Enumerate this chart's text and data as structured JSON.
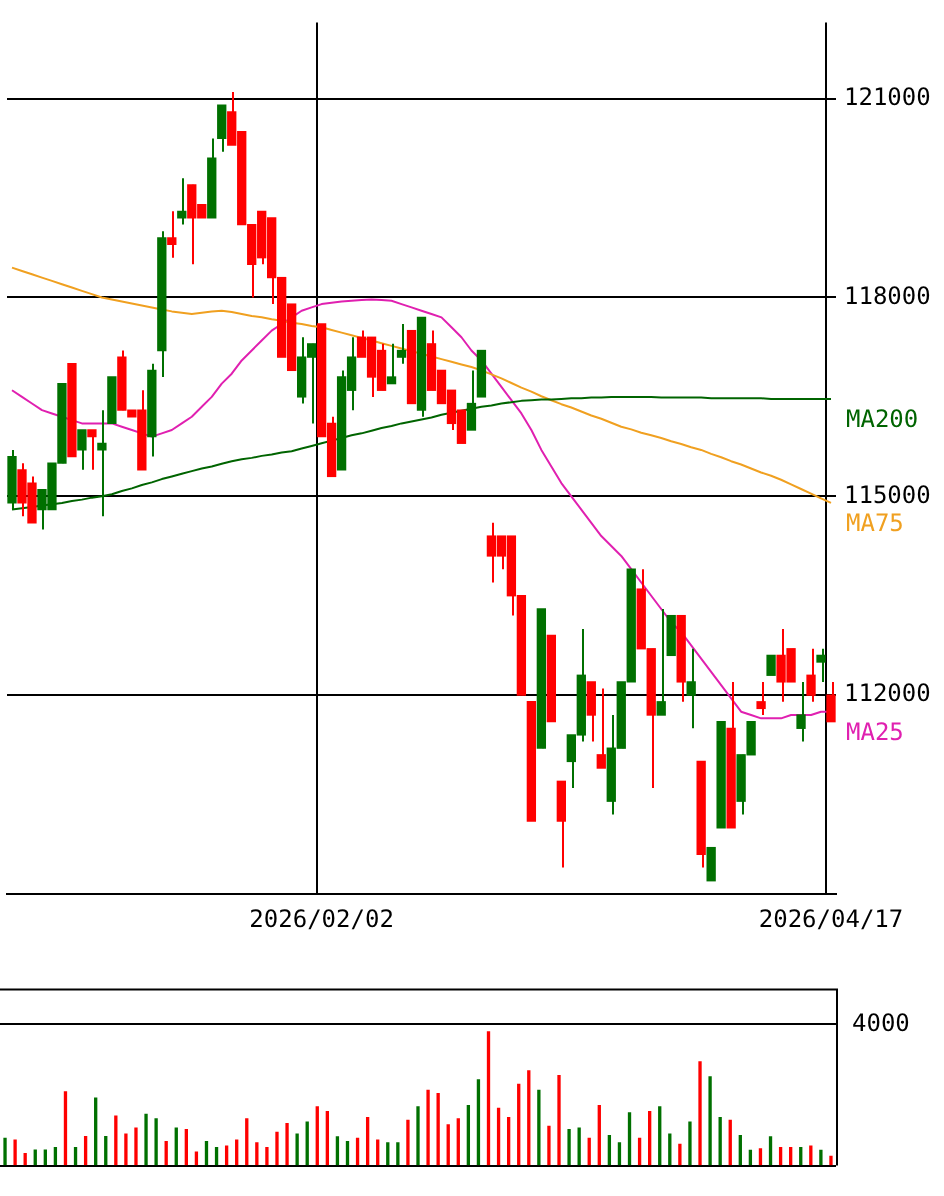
{
  "chart_data": [
    {
      "type": "candlestick",
      "categories": [
        null,
        null,
        null,
        null,
        null,
        null,
        null,
        null,
        null,
        null,
        null,
        null,
        null,
        null,
        null,
        null,
        null,
        null,
        null,
        null,
        null,
        null,
        null,
        null,
        null,
        null,
        null,
        null,
        null,
        null,
        null,
        "2026/02/02",
        null,
        null,
        null,
        null,
        null,
        null,
        null,
        null,
        null,
        null,
        null,
        null,
        null,
        null,
        null,
        null,
        null,
        null,
        null,
        null,
        null,
        null,
        null,
        null,
        null,
        null,
        null,
        null,
        null,
        null,
        null,
        null,
        null,
        null,
        null,
        null,
        null,
        null,
        null,
        null,
        null,
        null,
        null,
        null,
        null,
        null,
        null,
        null,
        null,
        null,
        "2026/04/17"
      ],
      "ohlc": [
        [
          114900,
          115700,
          114800,
          115600
        ],
        [
          115400,
          115500,
          114700,
          114900
        ],
        [
          115200,
          115300,
          114600,
          114600
        ],
        [
          114800,
          115100,
          114500,
          115100
        ],
        [
          114800,
          115500,
          114800,
          115500
        ],
        [
          115500,
          116700,
          115500,
          116700
        ],
        [
          117000,
          117000,
          115600,
          115600
        ],
        [
          115700,
          116000,
          115400,
          116000
        ],
        [
          116000,
          116000,
          115400,
          115900
        ],
        [
          115700,
          116300,
          114700,
          115800
        ],
        [
          116100,
          116800,
          116100,
          116800
        ],
        [
          117100,
          117200,
          116300,
          116300
        ],
        [
          116300,
          116300,
          116200,
          116200
        ],
        [
          116300,
          116600,
          115400,
          115400
        ],
        [
          115900,
          117000,
          115600,
          116900
        ],
        [
          117200,
          119000,
          116800,
          118900
        ],
        [
          118900,
          119300,
          118600,
          118800
        ],
        [
          119200,
          119800,
          119100,
          119300
        ],
        [
          119700,
          119700,
          118500,
          119200
        ],
        [
          119400,
          119400,
          119200,
          119200
        ],
        [
          119200,
          120400,
          119200,
          120100
        ],
        [
          120400,
          120900,
          120200,
          120900
        ],
        [
          120800,
          121100,
          120300,
          120300
        ],
        [
          120500,
          120500,
          119100,
          119100
        ],
        [
          119100,
          119100,
          118000,
          118500
        ],
        [
          119300,
          119300,
          118500,
          118600
        ],
        [
          119200,
          119200,
          117900,
          118300
        ],
        [
          118300,
          118300,
          117100,
          117100
        ],
        [
          117900,
          117900,
          116900,
          116900
        ],
        [
          116500,
          117400,
          116400,
          117100
        ],
        [
          117100,
          117300,
          116100,
          117300
        ],
        [
          117600,
          117600,
          115900,
          115900
        ],
        [
          116100,
          116200,
          115300,
          115300
        ],
        [
          115400,
          116900,
          115400,
          116800
        ],
        [
          116600,
          117400,
          116300,
          117100
        ],
        [
          117400,
          117500,
          117100,
          117100
        ],
        [
          117400,
          117400,
          116500,
          116800
        ],
        [
          117200,
          117300,
          116600,
          116600
        ],
        [
          116700,
          117300,
          116700,
          116800
        ],
        [
          117100,
          117600,
          117000,
          117200
        ],
        [
          117500,
          117500,
          116400,
          116400
        ],
        [
          116300,
          117700,
          116200,
          117700
        ],
        [
          117300,
          117500,
          116600,
          116600
        ],
        [
          116900,
          116900,
          116400,
          116400
        ],
        [
          116600,
          116600,
          116000,
          116100
        ],
        [
          116300,
          116300,
          115800,
          115800
        ],
        [
          116000,
          116900,
          116000,
          116400
        ],
        [
          116500,
          117200,
          116500,
          117200
        ],
        [
          114400,
          114600,
          113700,
          114100
        ],
        [
          114400,
          114400,
          113900,
          114100
        ],
        [
          114400,
          114400,
          113200,
          113500
        ],
        [
          113500,
          113500,
          112000,
          112000
        ],
        [
          111900,
          111900,
          110100,
          110100
        ],
        [
          111200,
          113300,
          111200,
          113300
        ],
        [
          112900,
          112900,
          111600,
          111600
        ],
        [
          110700,
          110700,
          109400,
          110100
        ],
        [
          111000,
          111400,
          110600,
          111400
        ],
        [
          111400,
          113000,
          111300,
          112300
        ],
        [
          112200,
          112200,
          111300,
          111700
        ],
        [
          111100,
          112100,
          110900,
          110900
        ],
        [
          110400,
          111700,
          110200,
          111200
        ],
        [
          111200,
          112200,
          111200,
          112200
        ],
        [
          112200,
          113900,
          112200,
          113900
        ],
        [
          113600,
          113900,
          112700,
          112700
        ],
        [
          112700,
          112700,
          110600,
          111700
        ],
        [
          111700,
          113300,
          111700,
          111900
        ],
        [
          112600,
          113200,
          112600,
          113200
        ],
        [
          113200,
          113200,
          111900,
          112200
        ],
        [
          112000,
          112700,
          111500,
          112200
        ],
        [
          111000,
          111000,
          109400,
          109600
        ],
        [
          109200,
          109700,
          109200,
          109700
        ],
        [
          110000,
          111600,
          110000,
          111600
        ],
        [
          111500,
          112200,
          110000,
          110000
        ],
        [
          110400,
          111100,
          110200,
          111100
        ],
        [
          111100,
          111600,
          111100,
          111600
        ],
        [
          111900,
          112200,
          111700,
          111800
        ],
        [
          112300,
          112600,
          112300,
          112600
        ],
        [
          112600,
          113000,
          111900,
          112200
        ],
        [
          112700,
          112700,
          112200,
          112200
        ],
        [
          111500,
          112200,
          111300,
          111700
        ],
        [
          112300,
          112700,
          111900,
          112000
        ],
        [
          112500,
          112700,
          112200,
          112600
        ],
        [
          112000,
          112200,
          111600,
          111600
        ]
      ],
      "colors": [
        "#007000",
        "#ff0000",
        "#ff0000",
        "#007000",
        "#007000",
        "#007000",
        "#ff0000",
        "#007000",
        "#ff0000",
        "#007000",
        "#007000",
        "#ff0000",
        "#ff0000",
        "#ff0000",
        "#007000",
        "#007000",
        "#ff0000",
        "#007000",
        "#ff0000",
        "#ff0000",
        "#007000",
        "#007000",
        "#ff0000",
        "#ff0000",
        "#ff0000",
        "#ff0000",
        "#ff0000",
        "#ff0000",
        "#ff0000",
        "#007000",
        "#007000",
        "#ff0000",
        "#ff0000",
        "#007000",
        "#007000",
        "#ff0000",
        "#ff0000",
        "#ff0000",
        "#007000",
        "#007000",
        "#ff0000",
        "#007000",
        "#ff0000",
        "#ff0000",
        "#ff0000",
        "#ff0000",
        "#007000",
        "#007000",
        "#ff0000",
        "#ff0000",
        "#ff0000",
        "#ff0000",
        "#ff0000",
        "#007000",
        "#ff0000",
        "#ff0000",
        "#007000",
        "#007000",
        "#ff0000",
        "#ff0000",
        "#007000",
        "#007000",
        "#007000",
        "#ff0000",
        "#ff0000",
        "#007000",
        "#007000",
        "#ff0000",
        "#007000",
        "#ff0000",
        "#007000",
        "#007000",
        "#ff0000",
        "#007000",
        "#007000",
        "#ff0000",
        "#007000",
        "#ff0000",
        "#ff0000",
        "#007000",
        "#ff0000",
        "#007000",
        "#ff0000"
      ],
      "series": [
        {
          "name": "MA200",
          "type": "line",
          "color": "#006400",
          "values": [
            114800,
            114820,
            114840,
            114860,
            114880,
            114900,
            114930,
            114950,
            114980,
            115000,
            115030,
            115080,
            115120,
            115170,
            115210,
            115260,
            115300,
            115340,
            115380,
            115420,
            115450,
            115490,
            115530,
            115560,
            115580,
            115610,
            115630,
            115660,
            115680,
            115720,
            115760,
            115800,
            115840,
            115880,
            115920,
            115950,
            115990,
            116030,
            116060,
            116100,
            116130,
            116160,
            116190,
            116230,
            116260,
            116290,
            116320,
            116350,
            116370,
            116400,
            116420,
            116440,
            116450,
            116460,
            116460,
            116470,
            116480,
            116480,
            116490,
            116490,
            116500,
            116500,
            116500,
            116500,
            116500,
            116490,
            116490,
            116490,
            116490,
            116490,
            116480,
            116480,
            116480,
            116480,
            116480,
            116480,
            116470,
            116470,
            116470,
            116470,
            116470,
            116470,
            116470
          ]
        },
        {
          "name": "MA75",
          "type": "line",
          "color": "#f0a020",
          "values": [
            118450,
            118400,
            118350,
            118300,
            118250,
            118200,
            118150,
            118100,
            118050,
            118000,
            117970,
            117940,
            117910,
            117880,
            117850,
            117820,
            117790,
            117770,
            117750,
            117770,
            117790,
            117800,
            117780,
            117750,
            117720,
            117700,
            117670,
            117650,
            117620,
            117600,
            117570,
            117550,
            117510,
            117470,
            117430,
            117390,
            117350,
            117310,
            117270,
            117230,
            117190,
            117150,
            117110,
            117070,
            117030,
            116990,
            116950,
            116900,
            116840,
            116780,
            116710,
            116640,
            116580,
            116510,
            116450,
            116390,
            116340,
            116280,
            116220,
            116170,
            116110,
            116050,
            116010,
            115960,
            115920,
            115880,
            115830,
            115790,
            115740,
            115700,
            115640,
            115590,
            115530,
            115480,
            115420,
            115360,
            115310,
            115250,
            115180,
            115110,
            115040,
            114970,
            114900
          ]
        },
        {
          "name": "MA25",
          "type": "line",
          "color": "#e020b0",
          "values": [
            116600,
            116500,
            116400,
            116300,
            116250,
            116200,
            116150,
            116100,
            116100,
            116100,
            116100,
            116050,
            116000,
            115950,
            115900,
            115950,
            116000,
            116100,
            116200,
            116350,
            116500,
            116700,
            116850,
            117050,
            117200,
            117350,
            117500,
            117600,
            117700,
            117800,
            117850,
            117900,
            117920,
            117940,
            117950,
            117960,
            117970,
            117960,
            117950,
            117900,
            117850,
            117800,
            117750,
            117700,
            117550,
            117400,
            117200,
            117050,
            116850,
            116650,
            116450,
            116250,
            116000,
            115700,
            115450,
            115200,
            115000,
            114800,
            114600,
            114400,
            114250,
            114100,
            113900,
            113700,
            113500,
            113300,
            113100,
            112950,
            112750,
            112550,
            112350,
            112150,
            111950,
            111750,
            111700,
            111650,
            111650,
            111650,
            111700,
            111700,
            111700,
            111750,
            111750
          ]
        }
      ],
      "ylim": [
        109000,
        122150
      ],
      "yticks": [
        112000,
        115000,
        118000,
        121000
      ],
      "grid": true
    },
    {
      "type": "bar",
      "tick_labels": "y",
      "grid": "y",
      "ylim": [
        0,
        5020
      ],
      "yticks": [
        {
          "value": 0,
          "label": null
        },
        4000
      ],
      "categories": [
        null,
        null,
        null,
        null,
        null,
        null,
        null,
        null,
        null,
        null,
        null,
        null,
        null,
        null,
        null,
        null,
        null,
        null,
        null,
        null,
        null,
        null,
        null,
        null,
        null,
        null,
        null,
        null,
        null,
        null,
        null,
        "2026/02/02",
        null,
        null,
        null,
        null,
        null,
        null,
        null,
        null,
        null,
        null,
        null,
        null,
        null,
        null,
        null,
        null,
        null,
        null,
        null,
        null,
        null,
        null,
        null,
        null,
        null,
        null,
        null,
        null,
        null,
        null,
        null,
        null,
        null,
        null,
        null,
        null,
        null,
        null,
        null,
        null,
        null,
        null,
        null,
        null,
        null,
        null,
        null,
        null,
        null,
        null,
        "2026/04/17"
      ],
      "values": [
        770,
        720,
        340,
        440,
        440,
        510,
        2090,
        510,
        820,
        1910,
        820,
        1400,
        890,
        1060,
        1450,
        1320,
        680,
        1060,
        1020,
        380,
        680,
        510,
        550,
        720,
        1320,
        640,
        510,
        940,
        1190,
        890,
        1230,
        1660,
        1530,
        810,
        680,
        770,
        1360,
        720,
        640,
        640,
        1280,
        1660,
        2130,
        2040,
        1150,
        1320,
        1700,
        2430,
        3790,
        1620,
        1360,
        2300,
        2680,
        2130,
        1110,
        2550,
        1020,
        1060,
        770,
        1700,
        850,
        640,
        1490,
        770,
        1530,
        1660,
        890,
        600,
        1230,
        2940,
        2510,
        1360,
        1280,
        850,
        430,
        470,
        810,
        510,
        510,
        510,
        550,
        430,
        260
      ],
      "colors": [
        "#007000",
        "#ff0000",
        "#ff0000",
        "#007000",
        "#007000",
        "#007000",
        "#ff0000",
        "#007000",
        "#ff0000",
        "#007000",
        "#007000",
        "#ff0000",
        "#ff0000",
        "#ff0000",
        "#007000",
        "#007000",
        "#ff0000",
        "#007000",
        "#ff0000",
        "#ff0000",
        "#007000",
        "#007000",
        "#ff0000",
        "#ff0000",
        "#ff0000",
        "#ff0000",
        "#ff0000",
        "#ff0000",
        "#ff0000",
        "#007000",
        "#007000",
        "#ff0000",
        "#ff0000",
        "#007000",
        "#007000",
        "#ff0000",
        "#ff0000",
        "#ff0000",
        "#007000",
        "#007000",
        "#ff0000",
        "#007000",
        "#ff0000",
        "#ff0000",
        "#ff0000",
        "#ff0000",
        "#007000",
        "#007000",
        "#ff0000",
        "#ff0000",
        "#ff0000",
        "#ff0000",
        "#ff0000",
        "#007000",
        "#ff0000",
        "#ff0000",
        "#007000",
        "#007000",
        "#ff0000",
        "#ff0000",
        "#007000",
        "#007000",
        "#007000",
        "#ff0000",
        "#ff0000",
        "#007000",
        "#007000",
        "#ff0000",
        "#007000",
        "#ff0000",
        "#007000",
        "#007000",
        "#ff0000",
        "#007000",
        "#007000",
        "#ff0000",
        "#007000",
        "#ff0000",
        "#ff0000",
        "#007000",
        "#ff0000",
        "#007000",
        "#ff0000"
      ],
      "legend": false
    }
  ]
}
